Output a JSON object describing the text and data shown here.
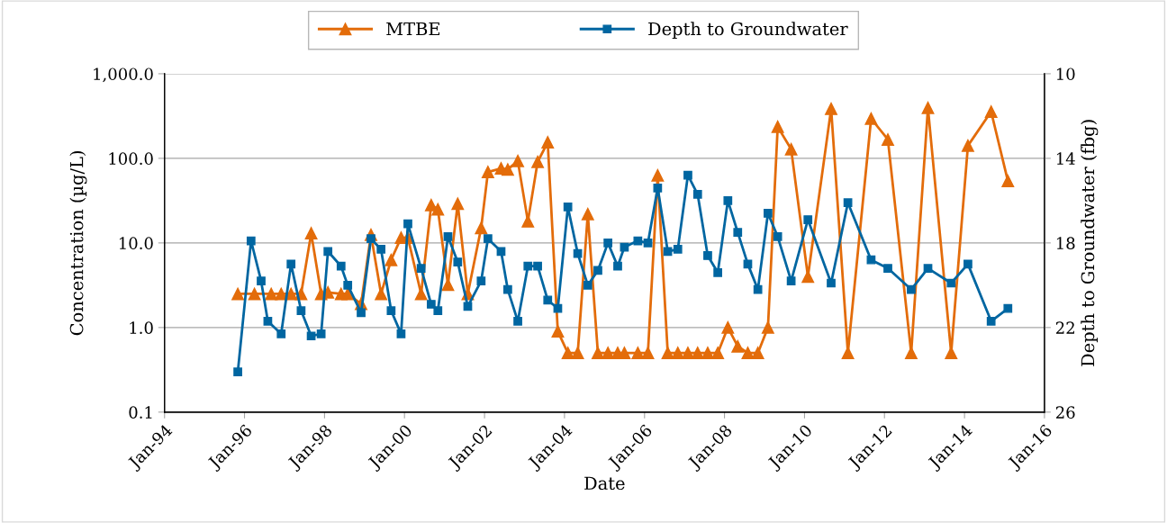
{
  "chart_data": {
    "type": "line",
    "xlabel": "Date",
    "ylabel": "Concentration (µg/L)",
    "y2label": "Depth to Groundwater (fbg)",
    "log": "y",
    "grid": "y",
    "legend": "top",
    "xlim": [
      "1994-01",
      "2016-01"
    ],
    "xticks": [
      {
        "value": "1994-01",
        "label": "Jan-94"
      },
      {
        "value": "1996-01",
        "label": "Jan-96"
      },
      {
        "value": "1998-01",
        "label": "Jan-98"
      },
      {
        "value": "2000-01",
        "label": "Jan-00"
      },
      {
        "value": "2002-01",
        "label": "Jan-02"
      },
      {
        "value": "2004-01",
        "label": "Jan-04"
      },
      {
        "value": "2006-01",
        "label": "Jan-06"
      },
      {
        "value": "2008-01",
        "label": "Jan-08"
      },
      {
        "value": "2010-01",
        "label": "Jan-10"
      },
      {
        "value": "2012-01",
        "label": "Jan-12"
      },
      {
        "value": "2014-01",
        "label": "Jan-14"
      },
      {
        "value": "2016-01",
        "label": "Jan-16"
      }
    ],
    "ylim": [
      0.1,
      1000
    ],
    "yticks": [
      {
        "value": 0.1,
        "label": "0.1"
      },
      {
        "value": 1,
        "label": "1.0"
      },
      {
        "value": 10,
        "label": "10.0"
      },
      {
        "value": 100,
        "label": "100.0"
      },
      {
        "value": 1000,
        "label": "1,000.0"
      }
    ],
    "y2lim": [
      26,
      10
    ],
    "y2ticks": [
      10,
      14,
      18,
      22,
      26
    ],
    "series": [
      {
        "name": "MTBE",
        "color": "#e36c0a",
        "marker": "triangle",
        "x": [
          "1995-11",
          "1996-04",
          "1996-09",
          "1996-12",
          "1997-03",
          "1997-06",
          "1997-09",
          "1997-12",
          "1998-02",
          "1998-06",
          "1998-08",
          "1998-12",
          "1999-03",
          "1999-06",
          "1999-09",
          "1999-12",
          "2000-02",
          "2000-06",
          "2000-09",
          "2000-11",
          "2001-02",
          "2001-05",
          "2001-08",
          "2001-12",
          "2002-02",
          "2002-06",
          "2002-08",
          "2002-11",
          "2003-02",
          "2003-05",
          "2003-08",
          "2003-11",
          "2004-02",
          "2004-05",
          "2004-08",
          "2004-11",
          "2005-02",
          "2005-05",
          "2005-07",
          "2005-11",
          "2006-02",
          "2006-05",
          "2006-08",
          "2006-11",
          "2007-02",
          "2007-05",
          "2007-08",
          "2007-11",
          "2008-02",
          "2008-05",
          "2008-08",
          "2008-11",
          "2009-02",
          "2009-05",
          "2009-09",
          "2010-02",
          "2010-09",
          "2011-02",
          "2011-09",
          "2012-02",
          "2012-09",
          "2013-02",
          "2013-09",
          "2014-02",
          "2014-09",
          "2015-02"
        ],
        "values": [
          2.5,
          2.5,
          2.5,
          2.5,
          2.5,
          2.5,
          13,
          2.5,
          2.6,
          2.5,
          2.5,
          1.9,
          12.5,
          2.5,
          6.3,
          11.5,
          11.5,
          2.5,
          28,
          25,
          3.2,
          29,
          2.5,
          15,
          69,
          76,
          74,
          93,
          18,
          91,
          155,
          0.9,
          0.5,
          0.5,
          22,
          0.5,
          0.5,
          0.5,
          0.5,
          0.5,
          0.5,
          63,
          0.5,
          0.5,
          0.5,
          0.5,
          0.5,
          0.5,
          1.0,
          0.6,
          0.5,
          0.5,
          1.0,
          236,
          128,
          4.0,
          385,
          0.5,
          295,
          167,
          0.5,
          395,
          0.5,
          141,
          357,
          54
        ]
      },
      {
        "name": "Depth to Groundwater",
        "color": "#0066a1",
        "marker": "square",
        "axis": "y2",
        "x": [
          "1995-11",
          "1996-03",
          "1996-06",
          "1996-08",
          "1996-12",
          "1997-03",
          "1997-06",
          "1997-09",
          "1997-12",
          "1998-02",
          "1998-06",
          "1998-08",
          "1998-12",
          "1999-03",
          "1999-06",
          "1999-09",
          "1999-12",
          "2000-02",
          "2000-06",
          "2000-09",
          "2000-11",
          "2001-02",
          "2001-05",
          "2001-08",
          "2001-12",
          "2002-02",
          "2002-06",
          "2002-08",
          "2002-11",
          "2003-02",
          "2003-05",
          "2003-08",
          "2003-11",
          "2004-02",
          "2004-05",
          "2004-08",
          "2004-11",
          "2005-02",
          "2005-05",
          "2005-07",
          "2005-11",
          "2006-02",
          "2006-05",
          "2006-08",
          "2006-11",
          "2007-02",
          "2007-05",
          "2007-08",
          "2007-11",
          "2008-02",
          "2008-05",
          "2008-08",
          "2008-11",
          "2009-02",
          "2009-05",
          "2009-09",
          "2010-02",
          "2010-09",
          "2011-02",
          "2011-09",
          "2012-02",
          "2012-09",
          "2013-02",
          "2013-09",
          "2014-02",
          "2014-09",
          "2015-02"
        ],
        "values": [
          24.1,
          17.9,
          19.8,
          21.7,
          22.3,
          19.0,
          21.2,
          22.4,
          22.3,
          18.4,
          19.1,
          20.0,
          21.3,
          17.8,
          18.3,
          21.2,
          22.3,
          17.1,
          19.2,
          20.9,
          21.2,
          17.7,
          18.9,
          21.0,
          19.8,
          17.8,
          18.4,
          20.2,
          21.7,
          19.1,
          19.1,
          20.7,
          21.1,
          16.3,
          18.5,
          20.0,
          19.3,
          18.0,
          19.1,
          18.2,
          17.9,
          18.0,
          15.4,
          18.4,
          18.3,
          14.8,
          15.7,
          18.6,
          19.4,
          16.0,
          17.5,
          19.0,
          20.2,
          16.6,
          17.7,
          19.8,
          16.9,
          19.9,
          16.1,
          18.8,
          19.2,
          20.2,
          19.2,
          19.9,
          19.0,
          21.7,
          21.1
        ]
      }
    ]
  }
}
